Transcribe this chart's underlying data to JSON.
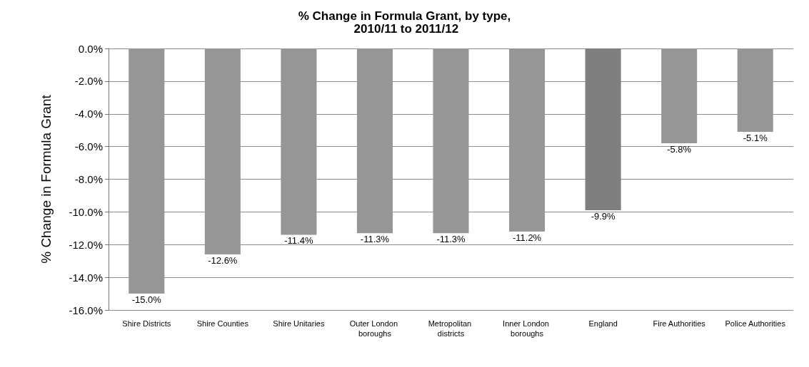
{
  "chart_data": {
    "type": "bar",
    "title": "% Change in Formula Grant, by type, 2010/11 to 2011/12",
    "ylabel": "% Change in Formula Grant",
    "categories": [
      "Shire Districts",
      "Shire Counties",
      "Shire Unitaries",
      "Outer London boroughs",
      "Metropolitan districts",
      "Inner London boroughs",
      "England",
      "Fire Authorities",
      "Police Authorities"
    ],
    "values": [
      -15.0,
      -12.6,
      -11.4,
      -11.3,
      -11.3,
      -11.2,
      -9.9,
      -5.8,
      -5.1
    ],
    "value_labels": [
      "-15.0%",
      "-12.6%",
      "-11.4%",
      "-11.3%",
      "-11.3%",
      "-11.2%",
      "-9.9%",
      "-5.8%",
      "-5.1%"
    ],
    "colors": [
      "#969696",
      "#969696",
      "#969696",
      "#969696",
      "#969696",
      "#969696",
      "#7f7f7f",
      "#969696",
      "#969696"
    ],
    "ylim": [
      -16,
      0
    ],
    "yticks": [
      {
        "value": -16,
        "label": "-16.0%"
      },
      {
        "value": -14,
        "label": "-14.0%"
      },
      {
        "value": -12,
        "label": "-12.0%"
      },
      {
        "value": -10,
        "label": "-10.0%"
      },
      {
        "value": -8,
        "label": "-8.0%"
      },
      {
        "value": -6,
        "label": "-6.0%"
      },
      {
        "value": -4,
        "label": "-4.0%"
      },
      {
        "value": -2,
        "label": "-2.0%"
      },
      {
        "value": 0,
        "label": "0.0%"
      }
    ],
    "grid": "y",
    "legend": false
  }
}
